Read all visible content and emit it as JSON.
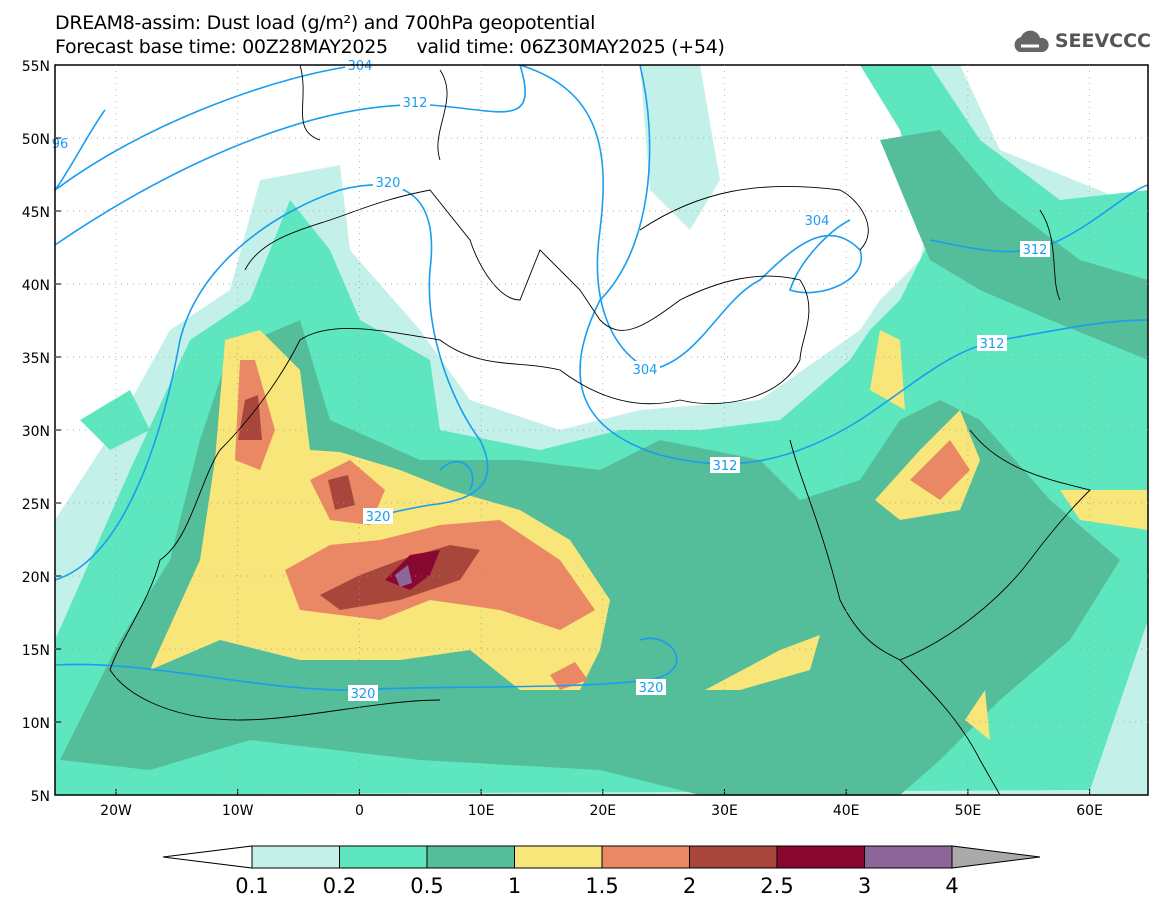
{
  "header": {
    "title_line1": "DREAM8-assim: Dust load (g/m²) and 700hPa geopotential",
    "title_line2": "Forecast base time: 00Z28MAY2025     valid time: 06Z30MAY2025 (+54)",
    "logo_text": "SEEVCCC"
  },
  "map": {
    "lat_labels": [
      "55N",
      "50N",
      "45N",
      "40N",
      "35N",
      "30N",
      "25N",
      "20N",
      "15N",
      "10N",
      "5N"
    ],
    "lon_labels": [
      "20W",
      "10W",
      "0",
      "10E",
      "20E",
      "30E",
      "40E",
      "50E",
      "60E"
    ],
    "contour_labels": [
      "304",
      "312",
      "320",
      "304",
      "312",
      "312",
      "304",
      "312",
      "320",
      "320",
      "320",
      "96"
    ]
  },
  "colorbar": {
    "labels": [
      "0.1",
      "0.2",
      "0.5",
      "1",
      "1.5",
      "2",
      "2.5",
      "3",
      "4"
    ],
    "colors": [
      "#c3f1ea",
      "#5ee6bf",
      "#54bd9a",
      "#f8e67a",
      "#ea8866",
      "#a8463c",
      "#880830",
      "#8c6698"
    ],
    "under_color": "#ffffff",
    "over_color": "#aaaaaa"
  }
}
